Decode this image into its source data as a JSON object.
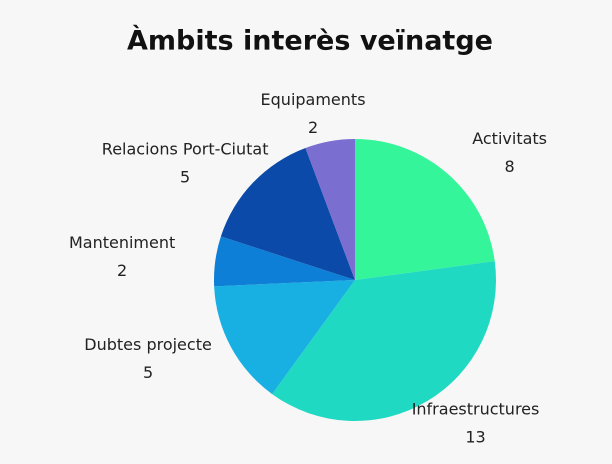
{
  "chart_data": {
    "type": "pie",
    "title": "Àmbits interès veïnatge",
    "categories": [
      "Activitats",
      "Infraestructures",
      "Dubtes projecte",
      "Manteniment",
      "Relacions Port-Ciutat",
      "Equipaments"
    ],
    "values": [
      8,
      13,
      5,
      2,
      5,
      2
    ],
    "colors": [
      "#35f59a",
      "#1fd9c2",
      "#18b0e2",
      "#0e7fd6",
      "#0b4aa8",
      "#7a6fd0"
    ]
  }
}
